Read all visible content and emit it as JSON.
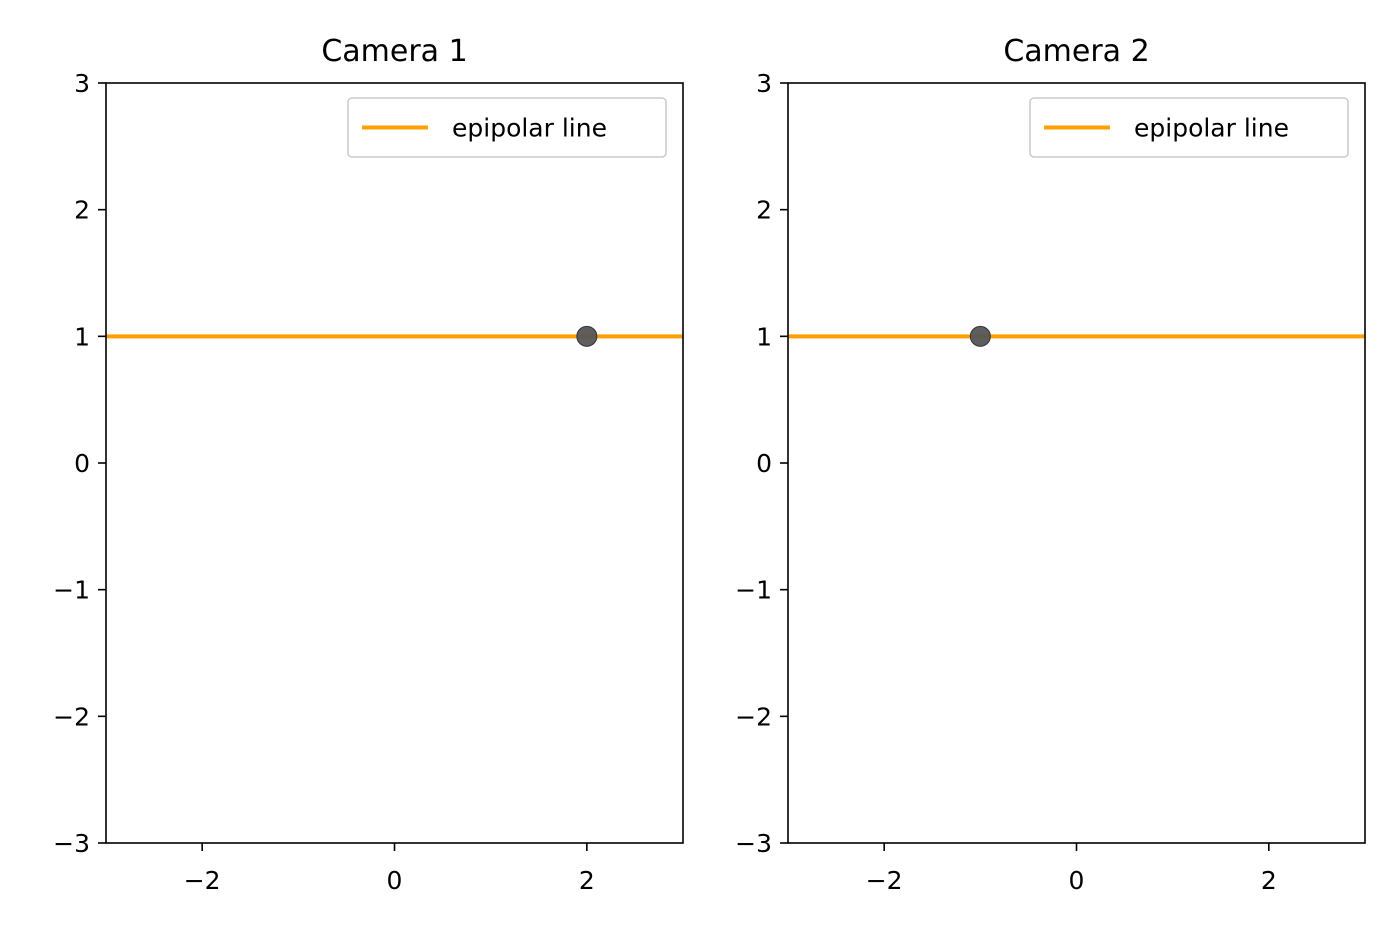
{
  "chart_data": [
    {
      "type": "line",
      "title": "Camera 1",
      "xlabel": "",
      "ylabel": "",
      "xlim": [
        -3,
        3
      ],
      "ylim": [
        -3,
        3
      ],
      "xticks": [
        "−2",
        "0",
        "2"
      ],
      "xtick_values": [
        -2,
        0,
        2
      ],
      "yticks": [
        "3",
        "2",
        "1",
        "0",
        "−1",
        "−2",
        "−3"
      ],
      "ytick_values": [
        3,
        2,
        1,
        0,
        -1,
        -2,
        -3
      ],
      "grid": false,
      "legend_placement": "top-right",
      "series": [
        {
          "name": "epipolar line",
          "kind": "line",
          "color": "#ff9f00",
          "x": [
            -3,
            3
          ],
          "y": [
            1,
            1
          ]
        }
      ],
      "points": [
        {
          "x": 2,
          "y": 1,
          "color": "#555555"
        }
      ]
    },
    {
      "type": "line",
      "title": "Camera 2",
      "xlabel": "",
      "ylabel": "",
      "xlim": [
        -3,
        3
      ],
      "ylim": [
        -3,
        3
      ],
      "xticks": [
        "−2",
        "0",
        "2"
      ],
      "xtick_values": [
        -2,
        0,
        2
      ],
      "yticks": [
        "3",
        "2",
        "1",
        "0",
        "−1",
        "−2",
        "−3"
      ],
      "ytick_values": [
        3,
        2,
        1,
        0,
        -1,
        -2,
        -3
      ],
      "grid": false,
      "legend_placement": "top-right",
      "series": [
        {
          "name": "epipolar line",
          "kind": "line",
          "color": "#ff9f00",
          "x": [
            -3,
            3
          ],
          "y": [
            1,
            1
          ]
        }
      ],
      "points": [
        {
          "x": -1,
          "y": 1,
          "color": "#555555"
        }
      ]
    }
  ]
}
